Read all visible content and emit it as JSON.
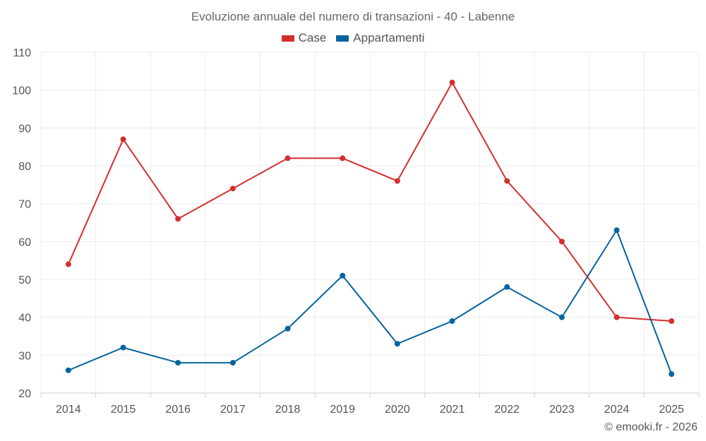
{
  "chart_data": {
    "type": "line",
    "title": "Evoluzione annuale del numero di transazioni - 40 - Labenne",
    "xlabel": "",
    "ylabel": "",
    "categories": [
      "2014",
      "2015",
      "2016",
      "2017",
      "2018",
      "2019",
      "2020",
      "2021",
      "2022",
      "2023",
      "2024",
      "2025"
    ],
    "ylim": [
      20,
      110
    ],
    "yticks": [
      20,
      30,
      40,
      50,
      60,
      70,
      80,
      90,
      100,
      110
    ],
    "grid": true,
    "legend_position": "top-center",
    "series": [
      {
        "name": "Case",
        "color": "#d32f2f",
        "values": [
          54,
          87,
          66,
          74,
          82,
          82,
          76,
          102,
          76,
          60,
          40,
          39
        ]
      },
      {
        "name": "Appartamenti",
        "color": "#05649e",
        "values": [
          26,
          32,
          28,
          28,
          37,
          51,
          33,
          39,
          48,
          40,
          63,
          25
        ]
      }
    ]
  },
  "credit": "© emooki.fr - 2026"
}
